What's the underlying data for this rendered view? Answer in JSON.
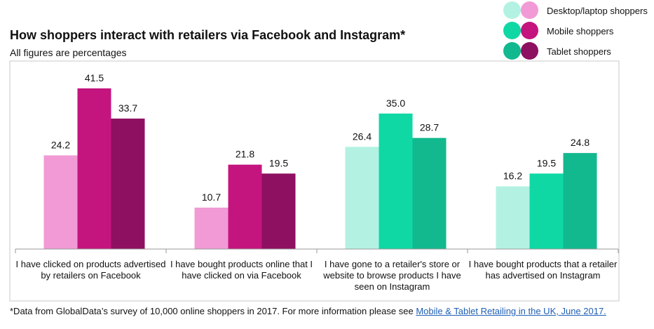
{
  "chart_data": {
    "type": "bar",
    "title": "How shoppers interact with retailers via Facebook and Instagram*",
    "subtitle": "All figures are percentages",
    "categories": [
      [
        "I have clicked on products advertised",
        "by retailers on Facebook"
      ],
      [
        "I have bought products online that I",
        "have clicked on via Facebook"
      ],
      [
        "I have gone to a retailer's store or",
        "website to browse products I have",
        "seen on Instagram"
      ],
      [
        "I have bought products that a retailer",
        "has advertised on Instagram"
      ]
    ],
    "series": [
      {
        "name": "Desktop/laptop shoppers",
        "values": [
          24.2,
          10.7,
          26.4,
          16.2
        ]
      },
      {
        "name": "Mobile shoppers",
        "values": [
          41.5,
          21.8,
          35.0,
          19.5
        ]
      },
      {
        "name": "Tablet shoppers",
        "values": [
          33.7,
          19.5,
          28.7,
          24.8
        ]
      }
    ],
    "value_labels": [
      [
        "24.2",
        "41.5",
        "33.7"
      ],
      [
        "10.7",
        "21.8",
        "19.5"
      ],
      [
        "26.4",
        "35.0",
        "28.7"
      ],
      [
        "16.2",
        "19.5",
        "24.8"
      ]
    ],
    "ylim": [
      0,
      46
    ],
    "grid": false,
    "legend_position": "top-right",
    "colors": {
      "facebook": [
        "#f19ad6",
        "#c4157f",
        "#8e1060"
      ],
      "instagram": [
        "#b3f2e2",
        "#0fd8a4",
        "#12b88e"
      ],
      "legend_left": [
        "#b3f2e2",
        "#0fd8a4",
        "#12b88e"
      ],
      "legend_right": [
        "#f19ad6",
        "#c4157f",
        "#8e1060"
      ],
      "axis": "#999999",
      "frame": "#c8c8c8"
    }
  },
  "footnote": {
    "text": "*Data from GlobalData’s survey of 10,000 online shoppers in 2017. For more information please see ",
    "link_text": "Mobile & Tablet Retailing in the UK, June 2017."
  }
}
